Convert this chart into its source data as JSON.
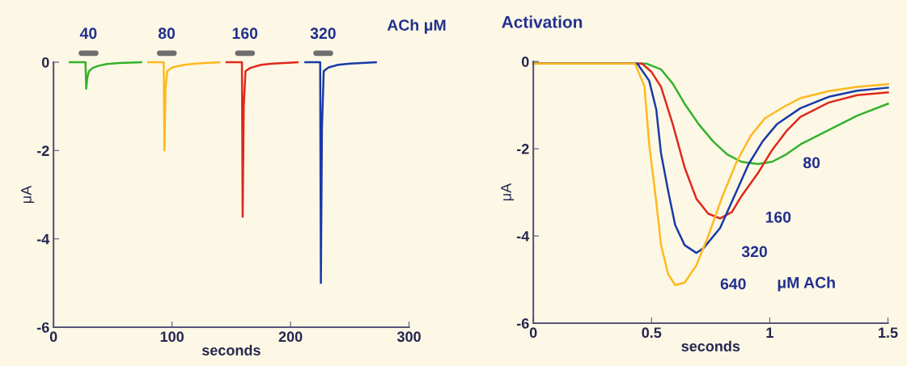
{
  "chart_data": [
    {
      "type": "line",
      "xlabel": "seconds",
      "ylabel": "μA",
      "xlim": [
        0,
        300
      ],
      "ylim": [
        -6,
        0
      ],
      "xticks": [
        0,
        100,
        200,
        300
      ],
      "yticks": [
        -6,
        -4,
        -2,
        0
      ],
      "annotations": [
        "ACh μM"
      ],
      "series": [
        {
          "name": "40",
          "color": "#33b22a",
          "x": [
            13.7,
            27,
            27.6,
            28.5,
            30,
            33,
            38,
            45,
            55,
            74
          ],
          "values": [
            0,
            0,
            -0.6,
            -0.35,
            -0.2,
            -0.13,
            -0.08,
            -0.04,
            -0.02,
            0
          ]
        },
        {
          "name": "80",
          "color": "#ffb81f",
          "x": [
            80,
            93,
            93.6,
            94.5,
            96,
            100,
            110,
            120,
            140
          ],
          "values": [
            0,
            0,
            -2.0,
            -0.6,
            -0.2,
            -0.12,
            -0.06,
            -0.03,
            0
          ]
        },
        {
          "name": "160",
          "color": "#e0281b",
          "x": [
            146,
            159,
            159.6,
            160.5,
            162,
            166,
            175,
            185,
            206
          ],
          "values": [
            0,
            0,
            -3.5,
            -1.0,
            -0.2,
            -0.13,
            -0.06,
            -0.03,
            0
          ]
        },
        {
          "name": "320",
          "color": "#1a3aa8",
          "x": [
            212.5,
            225,
            225.6,
            226.5,
            228,
            232,
            240,
            250,
            272
          ],
          "values": [
            0,
            0,
            -5.0,
            -1.5,
            -0.2,
            -0.12,
            -0.06,
            -0.03,
            0
          ]
        }
      ]
    },
    {
      "type": "line",
      "title": "Activation",
      "xlabel": "seconds",
      "ylabel": "μA",
      "xlim": [
        0,
        1.5
      ],
      "ylim": [
        -6,
        0
      ],
      "xticks": [
        0,
        0.5,
        1,
        1.5
      ],
      "yticks": [
        -6,
        -4,
        -2,
        0
      ],
      "annotations": [
        "μM ACh"
      ],
      "series": [
        {
          "name": "80",
          "color": "#33b22a",
          "x": [
            0,
            0.48,
            0.54,
            0.59,
            0.64,
            0.7,
            0.76,
            0.82,
            0.88,
            0.95,
            1.01,
            1.07,
            1.13,
            1.25,
            1.37,
            1.5
          ],
          "values": [
            -0.05,
            -0.05,
            -0.18,
            -0.51,
            -0.97,
            -1.44,
            -1.83,
            -2.13,
            -2.3,
            -2.35,
            -2.3,
            -2.13,
            -1.9,
            -1.57,
            -1.24,
            -0.97
          ]
        },
        {
          "name": "160",
          "color": "#e0281b",
          "x": [
            0,
            0.46,
            0.5,
            0.54,
            0.59,
            0.64,
            0.69,
            0.74,
            0.79,
            0.84,
            0.88,
            0.95,
            1.01,
            1.07,
            1.13,
            1.25,
            1.37,
            1.5
          ],
          "values": [
            -0.05,
            -0.05,
            -0.24,
            -0.58,
            -1.44,
            -2.43,
            -3.15,
            -3.49,
            -3.6,
            -3.45,
            -3.09,
            -2.56,
            -2.03,
            -1.6,
            -1.27,
            -0.94,
            -0.77,
            -0.71
          ]
        },
        {
          "name": "320",
          "color": "#1a3aa8",
          "x": [
            0,
            0.44,
            0.49,
            0.52,
            0.54,
            0.57,
            0.6,
            0.64,
            0.69,
            0.72,
            0.79,
            0.85,
            0.91,
            0.97,
            1.03,
            1.13,
            1.25,
            1.37,
            1.5
          ],
          "values": [
            -0.05,
            -0.05,
            -0.44,
            -1.1,
            -2.1,
            -2.96,
            -3.75,
            -4.21,
            -4.39,
            -4.28,
            -3.82,
            -3.09,
            -2.36,
            -1.83,
            -1.44,
            -1.07,
            -0.81,
            -0.67,
            -0.6
          ]
        },
        {
          "name": "640",
          "color": "#ffb81f",
          "x": [
            0,
            0.43,
            0.47,
            0.49,
            0.52,
            0.54,
            0.57,
            0.6,
            0.64,
            0.69,
            0.74,
            0.8,
            0.86,
            0.92,
            0.98,
            1.06,
            1.13,
            1.25,
            1.37,
            1.5
          ],
          "values": [
            -0.05,
            -0.05,
            -0.57,
            -1.9,
            -3.22,
            -4.2,
            -4.87,
            -5.13,
            -5.07,
            -4.67,
            -4.0,
            -3.09,
            -2.3,
            -1.7,
            -1.3,
            -1.04,
            -0.84,
            -0.68,
            -0.58,
            -0.52
          ]
        }
      ]
    }
  ]
}
